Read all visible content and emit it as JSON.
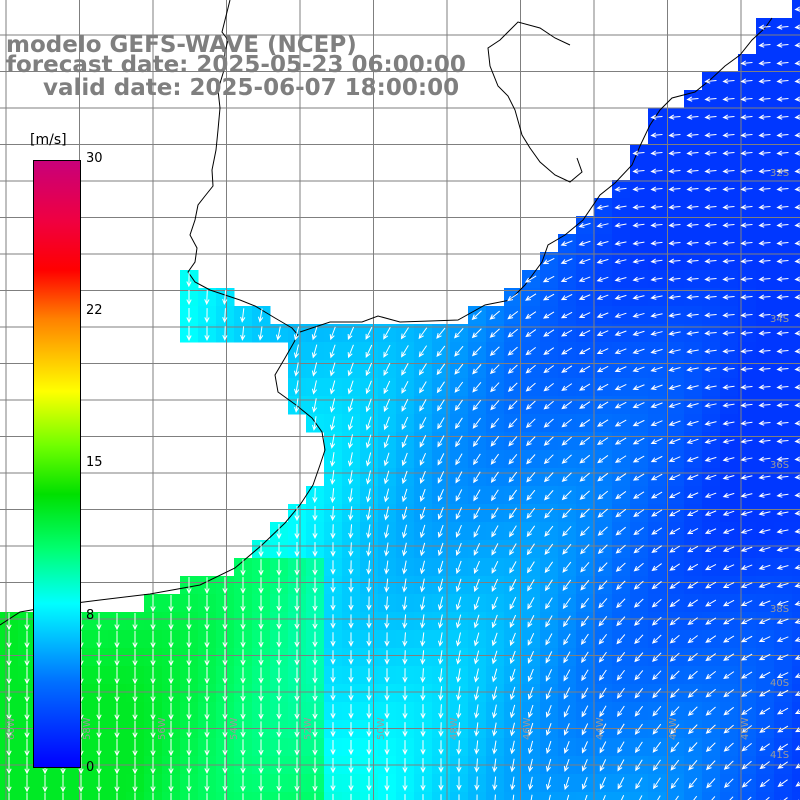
{
  "titles": {
    "line1": "modelo GEFS-WAVE (NCEP)",
    "line2": "forecast date: 2025-05-23 06:00:00",
    "line3": "valid date: 2025-06-07 18:00:00"
  },
  "colorbar": {
    "unit": "[m/s]",
    "ticks": [
      "30",
      "22",
      "15",
      "8",
      "0"
    ],
    "min": 0,
    "max": 30,
    "colors": {
      "low": "#0000ff",
      "cyan": "#00ffff",
      "green": "#00e000",
      "yellow": "#ffff00",
      "red": "#ff0000",
      "high": "#c8007a"
    }
  },
  "map": {
    "land_color": "#ffffff",
    "grid_color": "#7f7f7f",
    "coast_color": "#000000",
    "arrow_color": "#ffffff",
    "lon_labels": [
      "60W",
      "58W",
      "56W",
      "54W",
      "52W",
      "50W",
      "48W",
      "46W",
      "44W",
      "42W",
      "40W"
    ],
    "lat_labels": [
      "32S",
      "34S",
      "36S",
      "38S",
      "40S",
      "41S"
    ]
  }
}
